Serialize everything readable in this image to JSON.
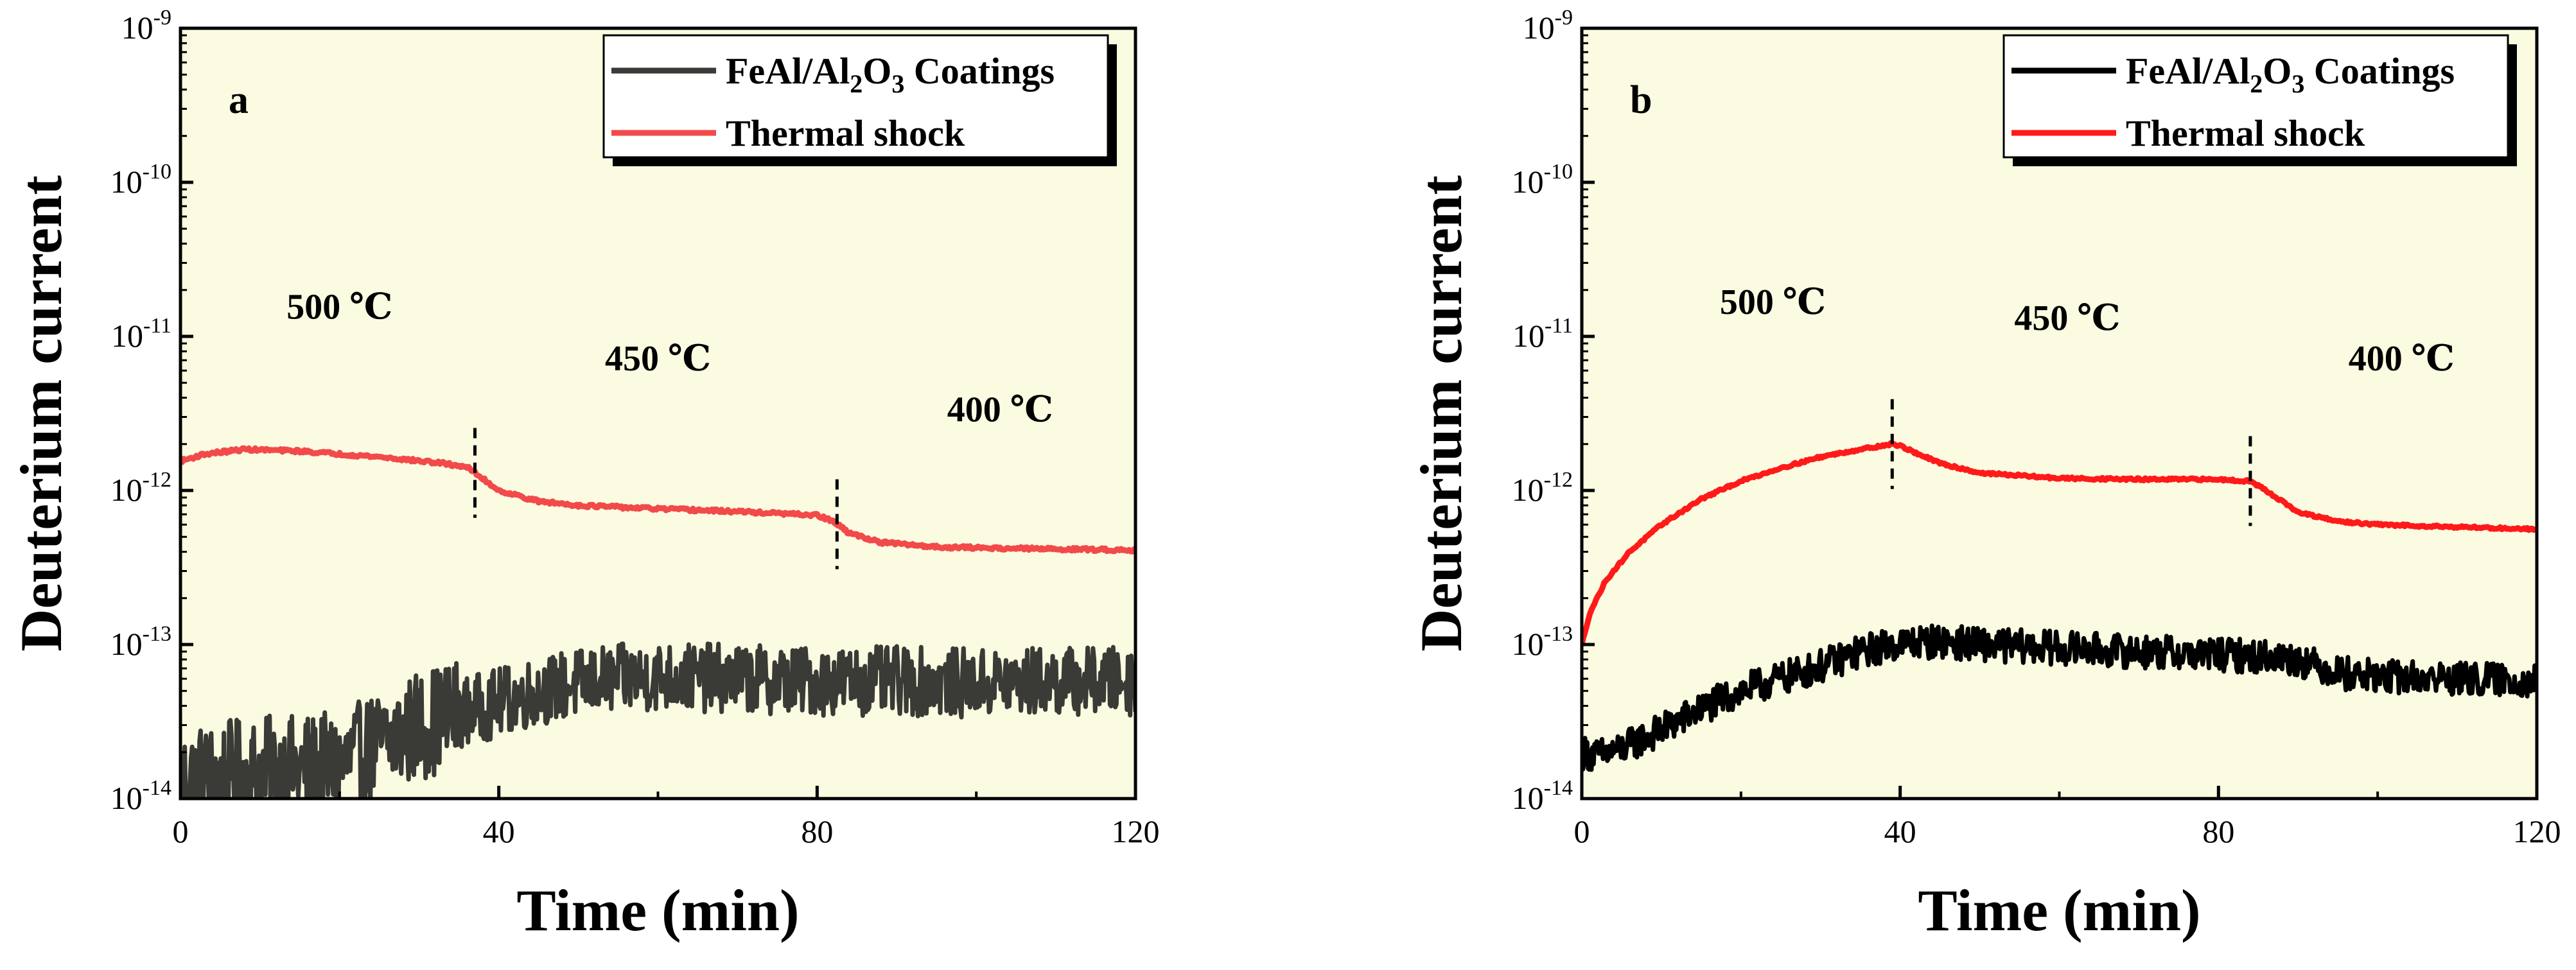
{
  "chart_data": [
    {
      "type": "line",
      "panel_label": "a",
      "xlabel": "Time (min)",
      "ylabel": "Deuterium current",
      "xlim": [
        0,
        120
      ],
      "ylim": [
        1e-14,
        1e-09
      ],
      "yscale": "log",
      "xticks": [
        "0",
        "40",
        "80",
        "120"
      ],
      "yticks": [
        {
          "base": "10",
          "exp": "-14"
        },
        {
          "base": "10",
          "exp": "-13"
        },
        {
          "base": "10",
          "exp": "-12"
        },
        {
          "base": "10",
          "exp": "-11"
        },
        {
          "base": "10",
          "exp": "-10"
        },
        {
          "base": "10",
          "exp": "-9"
        }
      ],
      "legend": [
        {
          "label": "FeAl/Al",
          "sub1": "2",
          "mid": "O",
          "sub2": "3",
          "tail": " Coatings",
          "color": "#3a3a36"
        },
        {
          "label": "Thermal shock",
          "color": "#f24a4a"
        }
      ],
      "annotations": [
        {
          "text": "500 ℃",
          "x": 20,
          "y": 1.3e-11
        },
        {
          "text": "450 ℃",
          "x": 60,
          "y": 6e-12
        },
        {
          "text": "400 ℃",
          "x": 103,
          "y": 2.8e-12
        }
      ],
      "dividers": [
        37,
        82.5
      ],
      "series": [
        {
          "name": "FeAl/Al2O3 Coatings",
          "color": "#3a3a36",
          "noise": 0.45,
          "x": [
            0,
            10,
            20,
            25,
            30,
            35,
            40,
            45,
            50,
            55,
            60,
            70,
            80,
            90,
            100,
            110,
            120
          ],
          "y": [
            1.3e-14,
            1.5e-14,
            1.6e-14,
            2.2e-14,
            3e-14,
            3.6e-14,
            4.2e-14,
            5e-14,
            5.6e-14,
            6e-14,
            6.2e-14,
            6e-14,
            5.8e-14,
            5.8e-14,
            5.6e-14,
            5.8e-14,
            5.8e-14
          ]
        },
        {
          "name": "Thermal shock",
          "color": "#f24a4a",
          "noise": 0.02,
          "x": [
            0,
            3,
            8,
            15,
            25,
            33,
            36,
            37,
            40,
            45,
            50,
            60,
            70,
            80,
            82,
            84,
            88,
            95,
            105,
            120
          ],
          "y": [
            1.55e-12,
            1.72e-12,
            1.85e-12,
            1.8e-12,
            1.65e-12,
            1.5e-12,
            1.42e-12,
            1.3e-12,
            1e-12,
            8.5e-13,
            8e-13,
            7.6e-13,
            7.3e-13,
            6.9e-13,
            6.3e-13,
            5.3e-13,
            4.6e-13,
            4.3e-13,
            4.2e-13,
            4.1e-13
          ]
        }
      ]
    },
    {
      "type": "line",
      "panel_label": "b",
      "xlabel": "Time (min)",
      "ylabel": "Deuterium current",
      "xlim": [
        0,
        120
      ],
      "ylim": [
        1e-14,
        1e-09
      ],
      "yscale": "log",
      "xticks": [
        "0",
        "40",
        "80",
        "120"
      ],
      "yticks": [
        {
          "base": "10",
          "exp": "-14"
        },
        {
          "base": "10",
          "exp": "-13"
        },
        {
          "base": "10",
          "exp": "-12"
        },
        {
          "base": "10",
          "exp": "-11"
        },
        {
          "base": "10",
          "exp": "-10"
        },
        {
          "base": "10",
          "exp": "-9"
        }
      ],
      "legend": [
        {
          "label": "FeAl/Al",
          "sub1": "2",
          "mid": "O",
          "sub2": "3",
          "tail": " Coatings",
          "color": "#000000"
        },
        {
          "label": "Thermal shock",
          "color": "#ff1a1a"
        }
      ],
      "annotations": [
        {
          "text": "500 ℃",
          "x": 24,
          "y": 1.4e-11
        },
        {
          "text": "450 ℃",
          "x": 61,
          "y": 1.1e-11
        },
        {
          "text": "400 ℃",
          "x": 103,
          "y": 6e-12
        }
      ],
      "dividers": [
        39,
        84
      ],
      "series": [
        {
          "name": "FeAl/Al2O3 Coatings",
          "color": "#000000",
          "noise": 0.22,
          "x": [
            0,
            2,
            5,
            10,
            15,
            20,
            25,
            30,
            35,
            40,
            45,
            50,
            60,
            70,
            80,
            85,
            90,
            95,
            100,
            110,
            120
          ],
          "y": [
            2e-14,
            1.9e-14,
            2.1e-14,
            2.8e-14,
            3.8e-14,
            5e-14,
            6e-14,
            7.2e-14,
            9e-14,
            1.02e-13,
            1.05e-13,
            1e-13,
            9.5e-14,
            9e-14,
            8.6e-14,
            8.4e-14,
            8e-14,
            6.6e-14,
            6.2e-14,
            6e-14,
            5.8e-14
          ]
        },
        {
          "name": "Thermal shock",
          "color": "#ff1a1a",
          "noise": 0.015,
          "x": [
            0,
            1,
            3,
            6,
            10,
            15,
            20,
            25,
            30,
            35,
            39,
            40,
            42,
            45,
            50,
            60,
            70,
            80,
            84,
            86,
            88,
            90,
            95,
            100,
            110,
            120
          ],
          "y": [
            1e-13,
            1.6e-13,
            2.6e-13,
            4e-13,
            6e-13,
            8.8e-13,
            1.15e-12,
            1.4e-12,
            1.65e-12,
            1.85e-12,
            2e-12,
            1.95e-12,
            1.75e-12,
            1.5e-12,
            1.3e-12,
            1.2e-12,
            1.18e-12,
            1.18e-12,
            1.15e-12,
            1e-12,
            8.5e-13,
            7.2e-13,
            6.3e-13,
            6e-13,
            5.8e-13,
            5.6e-13
          ]
        }
      ]
    }
  ]
}
